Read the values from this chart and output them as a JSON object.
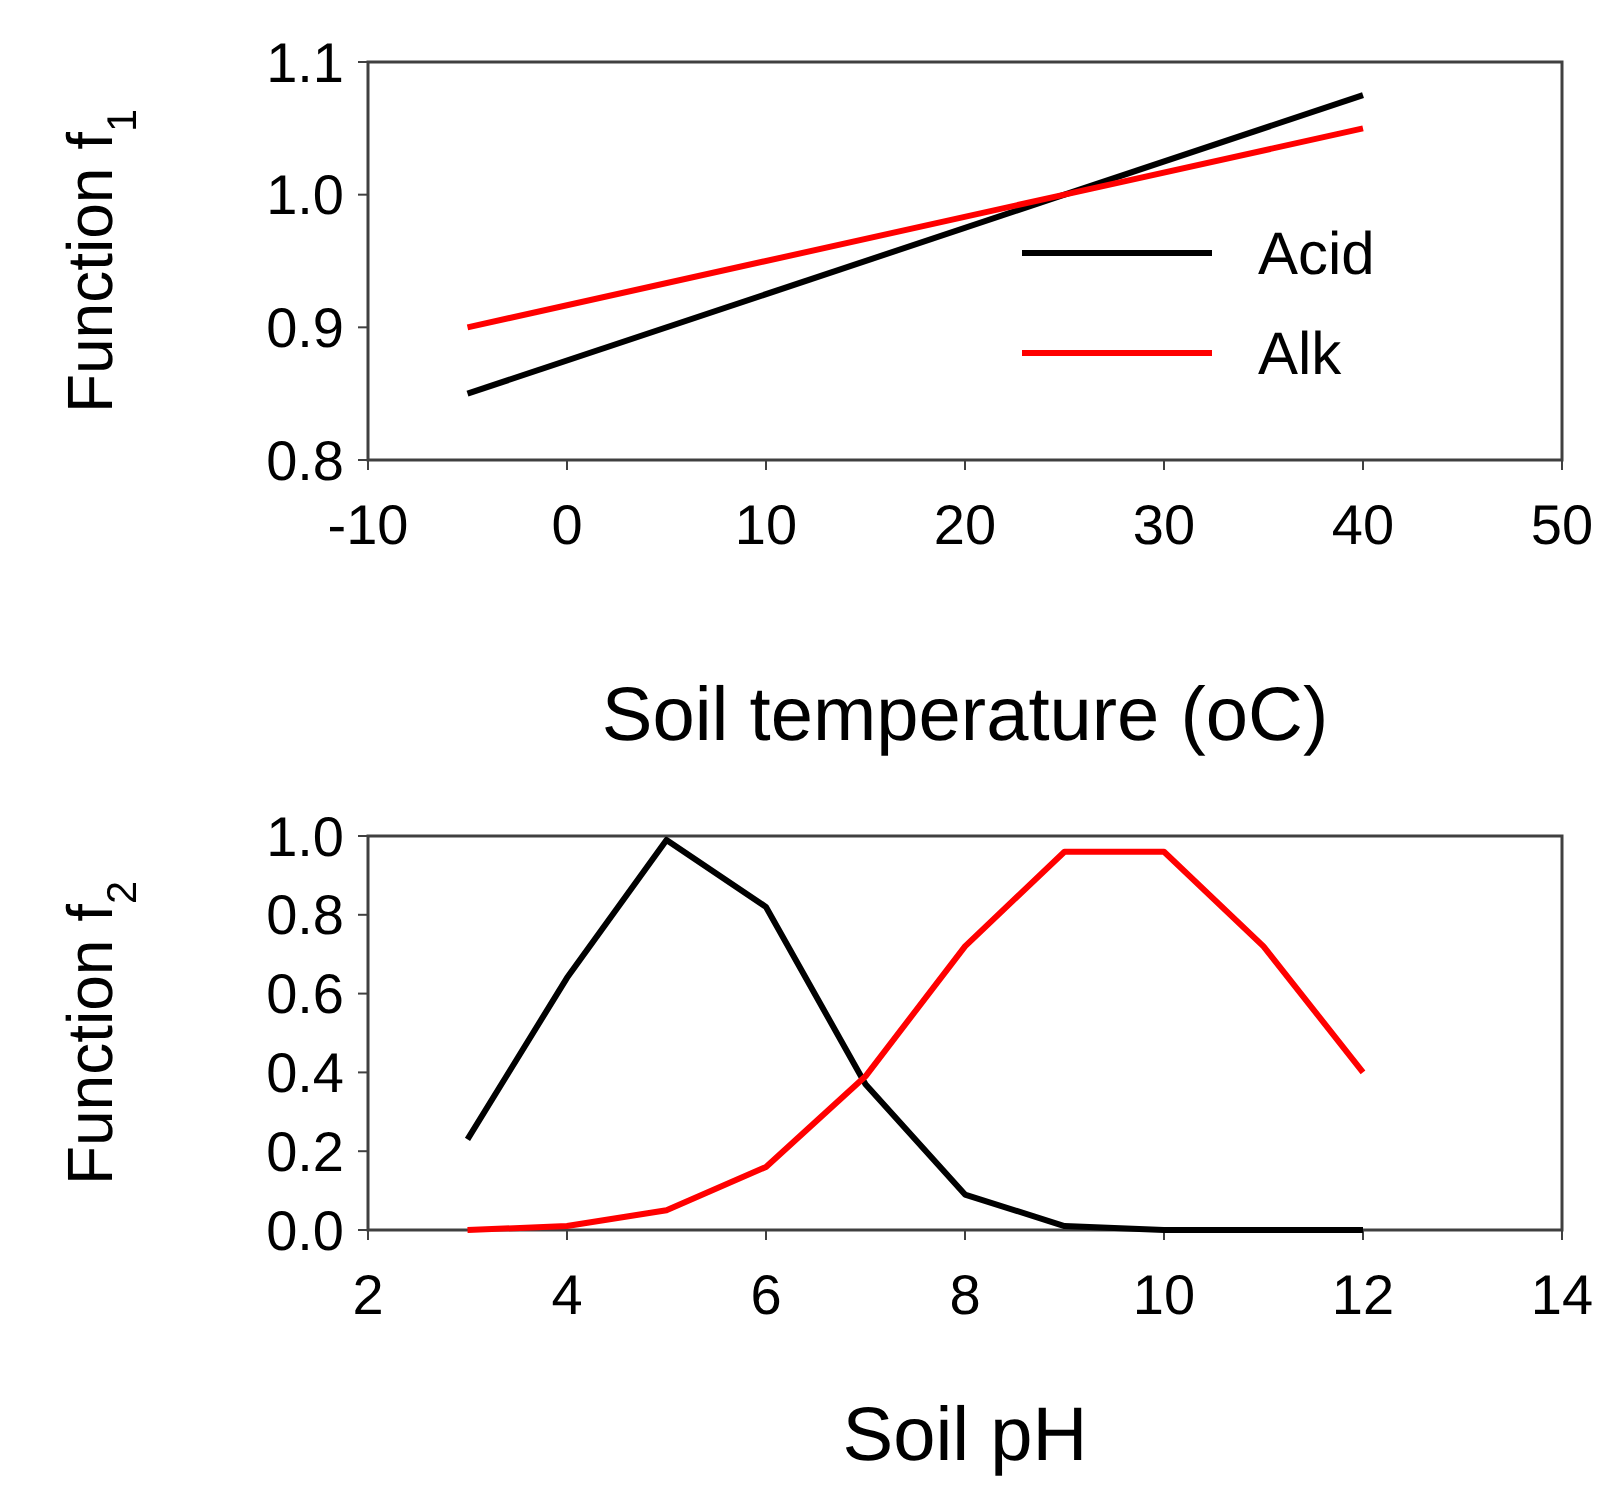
{
  "chart_data": [
    {
      "type": "line",
      "ylabel": "Function f$_{1}$",
      "xlabel": "Soil temperature (oC)",
      "xlim": [
        -10,
        50
      ],
      "xticks": [
        -10,
        0,
        10,
        20,
        30,
        40,
        50
      ],
      "ylim": [
        0.8,
        1.1
      ],
      "yticks": [
        {
          "value": 0.8,
          "label": "0.8"
        },
        {
          "value": 0.9,
          "label": "0.9"
        },
        {
          "value": 1.0,
          "label": "1.0"
        },
        {
          "value": 1.1,
          "label": "1.1"
        }
      ],
      "x": [
        -5,
        25,
        40
      ],
      "legend": "right",
      "grid": false,
      "series": [
        {
          "name": "Acid",
          "color": "#000000",
          "values": [
            0.85,
            1.0,
            1.075
          ]
        },
        {
          "name": "Alk",
          "color": "#ff0000",
          "values": [
            0.9,
            1.0,
            1.05
          ]
        }
      ]
    },
    {
      "type": "line",
      "ylabel": "Function f$_{2}$",
      "xlabel": "Soil pH",
      "xlim": [
        2,
        14
      ],
      "xticks": [
        2,
        4,
        6,
        8,
        10,
        12,
        14
      ],
      "ylim": [
        0,
        1
      ],
      "yticks": [
        {
          "value": 0,
          "label": "0.0"
        },
        {
          "value": 0.2,
          "label": "0.2"
        },
        {
          "value": 0.4,
          "label": "0.4"
        },
        {
          "value": 0.6,
          "label": "0.6"
        },
        {
          "value": 0.8,
          "label": "0.8"
        },
        {
          "value": 1,
          "label": "1.0"
        }
      ],
      "x": [
        3,
        4,
        5,
        6,
        7,
        8,
        9,
        10,
        11,
        12
      ],
      "legend": false,
      "grid": false,
      "series": [
        {
          "color": "#000000",
          "values": [
            0.23,
            0.64,
            0.99,
            0.82,
            0.37,
            0.09,
            0.01,
            0,
            0,
            0
          ]
        },
        {
          "color": "#ff0000",
          "values": [
            0,
            0.01,
            0.05,
            0.16,
            0.39,
            0.72,
            0.96,
            0.96,
            0.72,
            0.4
          ]
        }
      ]
    }
  ]
}
